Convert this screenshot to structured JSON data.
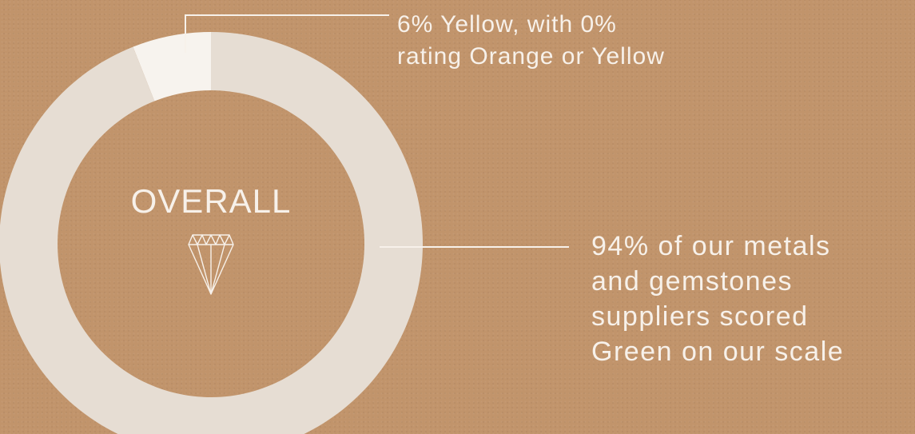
{
  "chart_data": {
    "type": "pie",
    "title": "OVERALL",
    "slices": [
      {
        "label": "Green",
        "value": 94,
        "color": "#e6ddd3"
      },
      {
        "label": "Yellow",
        "value": 6,
        "color": "#f7f3ee"
      }
    ],
    "annotations": [
      "6% Yellow, with 0% rating Orange or Yellow",
      "94% of our metals and gemstones suppliers scored Green on our scale"
    ]
  },
  "labels": {
    "small": [
      "6% Yellow, with 0%",
      "rating Orange or Yellow"
    ],
    "large": [
      "94% of our metals",
      "and gemstones",
      "suppliers scored",
      "Green on our scale"
    ]
  },
  "icons": {
    "center": "diamond-icon"
  },
  "colors": {
    "background": "#c1946b",
    "text": "#f7f1ea",
    "line": "#f7f1ea"
  }
}
